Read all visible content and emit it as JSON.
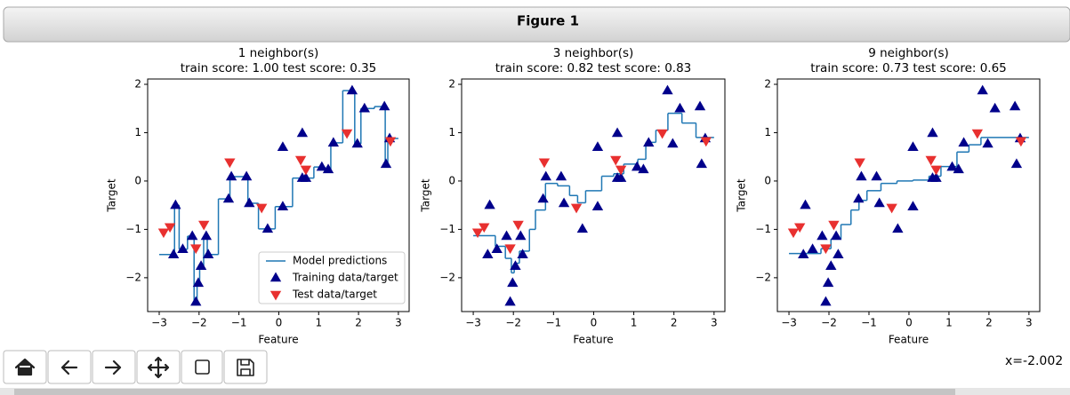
{
  "window_title": "Figure 1",
  "status": "x=-2.002",
  "chart_data": [
    {
      "type": "knn",
      "title": "1 neighbor(s)",
      "subtitle": "train score: 1.00 test score: 0.35",
      "xlabel": "Feature",
      "ylabel": "Target",
      "xlim": [
        -3.29,
        3.27
      ],
      "ylim": [
        -2.7,
        2.11
      ],
      "xticks": [
        {
          "value": -3,
          "label": "−3"
        },
        {
          "value": -2,
          "label": "−2"
        },
        {
          "value": -1,
          "label": "−1"
        },
        0,
        1,
        2,
        3
      ],
      "yticks": [
        {
          "value": -2,
          "label": "−2"
        },
        {
          "value": -1,
          "label": "−1"
        },
        0,
        1,
        2
      ],
      "legend": "lower right",
      "series": [
        {
          "name": "Model predictions",
          "type": "step",
          "color": "#1f77b4",
          "edges": [
            -3,
            -2.615,
            -2.5,
            -2.29,
            -2.125,
            -2.05,
            -1.985,
            -1.885,
            -1.795,
            -1.515,
            -1.225,
            -0.775,
            -0.51,
            -0.09,
            0.345,
            0.88,
            1.16,
            1.305,
            1.605,
            1.905,
            2.06,
            2.4,
            2.67,
            2.735,
            3
          ],
          "values": [
            -1.52,
            -0.5,
            -1.41,
            -1.14,
            -2.5,
            -2.11,
            -1.76,
            -1.14,
            -1.52,
            -0.37,
            0.09,
            -0.46,
            -0.99,
            -0.53,
            0.06,
            0.29,
            0.24,
            0.79,
            1.87,
            0.77,
            1.5,
            1.54,
            0.35,
            0.88
          ]
        },
        {
          "name": "Training data/target",
          "type": "scatter",
          "marker": "up",
          "color": "#00008b",
          "x": [
            -2.64,
            -2.59,
            -2.41,
            -2.17,
            -2.08,
            -2.02,
            -1.95,
            -1.82,
            -1.77,
            -1.26,
            -1.19,
            -0.81,
            -0.74,
            -0.28,
            0.1,
            0.1,
            0.59,
            0.59,
            0.68,
            1.08,
            1.24,
            1.37,
            1.84,
            1.97,
            2.15,
            2.65,
            2.69,
            2.78
          ],
          "values": [
            -1.52,
            -0.5,
            -1.41,
            -1.14,
            -2.5,
            -2.11,
            -1.76,
            -1.14,
            -1.52,
            -0.37,
            0.09,
            0.09,
            -0.46,
            -0.99,
            0.7,
            -0.53,
            0.99,
            0.06,
            0.06,
            0.29,
            0.24,
            0.79,
            1.87,
            0.77,
            1.5,
            1.54,
            0.35,
            0.88
          ]
        },
        {
          "name": "Test data/target",
          "type": "scatter",
          "marker": "down",
          "color": "#e8302f",
          "x": [
            -2.89,
            -2.73,
            -2.08,
            -1.88,
            -1.23,
            -0.43,
            0.55,
            0.68,
            1.71,
            2.8
          ],
          "values": [
            -1.06,
            -0.95,
            -1.39,
            -0.9,
            0.39,
            -0.55,
            0.44,
            0.24,
            0.99,
            0.83
          ]
        }
      ]
    },
    {
      "type": "knn",
      "title": "3 neighbor(s)",
      "subtitle": "train score: 0.82 test score: 0.83",
      "xlabel": "Feature",
      "ylabel": "Target",
      "xlim": [
        -3.29,
        3.27
      ],
      "ylim": [
        -2.7,
        2.11
      ],
      "xticks": [
        {
          "value": -3,
          "label": "−3"
        },
        {
          "value": -2,
          "label": "−2"
        },
        {
          "value": -1,
          "label": "−1"
        },
        0,
        1,
        2,
        3
      ],
      "yticks": [
        {
          "value": -2,
          "label": "−2"
        },
        {
          "value": -1,
          "label": "−1"
        },
        0,
        1,
        2
      ],
      "series": [
        {
          "type": "step",
          "color": "#1f77b4",
          "edges": [
            -3,
            -2.45,
            -2.2,
            -2.05,
            -1.98,
            -1.85,
            -1.6,
            -1.45,
            -1.2,
            -0.9,
            -0.6,
            -0.4,
            -0.2,
            0.2,
            0.5,
            0.75,
            1.1,
            1.3,
            1.55,
            1.85,
            2.2,
            2.55,
            3
          ],
          "values": [
            -1.13,
            -1.35,
            -1.6,
            -1.9,
            -1.7,
            -1.45,
            -1.0,
            -0.6,
            -0.05,
            -0.1,
            -0.3,
            -0.45,
            -0.2,
            0.1,
            0.15,
            0.35,
            0.45,
            0.8,
            1.05,
            1.4,
            1.2,
            0.9
          ]
        },
        {
          "type": "scatter",
          "marker": "up",
          "color": "#00008b",
          "x": [
            -2.64,
            -2.59,
            -2.41,
            -2.17,
            -2.08,
            -2.02,
            -1.95,
            -1.82,
            -1.77,
            -1.26,
            -1.19,
            -0.81,
            -0.74,
            -0.28,
            0.1,
            0.1,
            0.59,
            0.59,
            0.68,
            1.08,
            1.24,
            1.37,
            1.84,
            1.97,
            2.15,
            2.65,
            2.69,
            2.78
          ],
          "values": [
            -1.52,
            -0.5,
            -1.41,
            -1.14,
            -2.5,
            -2.11,
            -1.76,
            -1.14,
            -1.52,
            -0.37,
            0.09,
            0.09,
            -0.46,
            -0.99,
            0.7,
            -0.53,
            0.99,
            0.06,
            0.06,
            0.29,
            0.24,
            0.79,
            1.87,
            0.77,
            1.5,
            1.54,
            0.35,
            0.88
          ]
        },
        {
          "type": "scatter",
          "marker": "down",
          "color": "#e8302f",
          "x": [
            -2.89,
            -2.73,
            -2.08,
            -1.88,
            -1.23,
            -0.43,
            0.55,
            0.68,
            1.71,
            2.8
          ],
          "values": [
            -1.06,
            -0.95,
            -1.39,
            -0.9,
            0.39,
            -0.55,
            0.44,
            0.24,
            0.99,
            0.83
          ]
        }
      ]
    },
    {
      "type": "knn",
      "title": "9 neighbor(s)",
      "subtitle": "train score: 0.73 test score: 0.65",
      "xlabel": "Feature",
      "ylabel": "Target",
      "xlim": [
        -3.29,
        3.27
      ],
      "ylim": [
        -2.7,
        2.11
      ],
      "xticks": [
        {
          "value": -3,
          "label": "−3"
        },
        {
          "value": -2,
          "label": "−2"
        },
        {
          "value": -1,
          "label": "−1"
        },
        0,
        1,
        2,
        3
      ],
      "yticks": [
        {
          "value": -2,
          "label": "−2"
        },
        {
          "value": -1,
          "label": "−1"
        },
        0,
        1,
        2
      ],
      "series": [
        {
          "type": "step",
          "color": "#1f77b4",
          "edges": [
            -3,
            -2.2,
            -1.95,
            -1.7,
            -1.45,
            -1.25,
            -1.05,
            -0.7,
            -0.3,
            0.1,
            0.5,
            0.8,
            1.2,
            1.5,
            1.8,
            3
          ],
          "values": [
            -1.5,
            -1.4,
            -1.2,
            -0.9,
            -0.6,
            -0.4,
            -0.2,
            -0.05,
            0.0,
            0.02,
            0.1,
            0.3,
            0.6,
            0.75,
            0.9
          ]
        },
        {
          "type": "scatter",
          "marker": "up",
          "color": "#00008b",
          "x": [
            -2.64,
            -2.59,
            -2.41,
            -2.17,
            -2.08,
            -2.02,
            -1.95,
            -1.82,
            -1.77,
            -1.26,
            -1.19,
            -0.81,
            -0.74,
            -0.28,
            0.1,
            0.1,
            0.59,
            0.59,
            0.68,
            1.08,
            1.24,
            1.37,
            1.84,
            1.97,
            2.15,
            2.65,
            2.69,
            2.78
          ],
          "values": [
            -1.52,
            -0.5,
            -1.41,
            -1.14,
            -2.5,
            -2.11,
            -1.76,
            -1.14,
            -1.52,
            -0.37,
            0.09,
            0.09,
            -0.46,
            -0.99,
            0.7,
            -0.53,
            0.99,
            0.06,
            0.06,
            0.29,
            0.24,
            0.79,
            1.87,
            0.77,
            1.5,
            1.54,
            0.35,
            0.88
          ]
        },
        {
          "type": "scatter",
          "marker": "down",
          "color": "#e8302f",
          "x": [
            -2.89,
            -2.73,
            -2.08,
            -1.88,
            -1.23,
            -0.43,
            0.55,
            0.68,
            1.71,
            2.8
          ],
          "values": [
            -1.06,
            -0.95,
            -1.39,
            -0.9,
            0.39,
            -0.55,
            0.44,
            0.24,
            0.99,
            0.83
          ]
        }
      ]
    }
  ]
}
